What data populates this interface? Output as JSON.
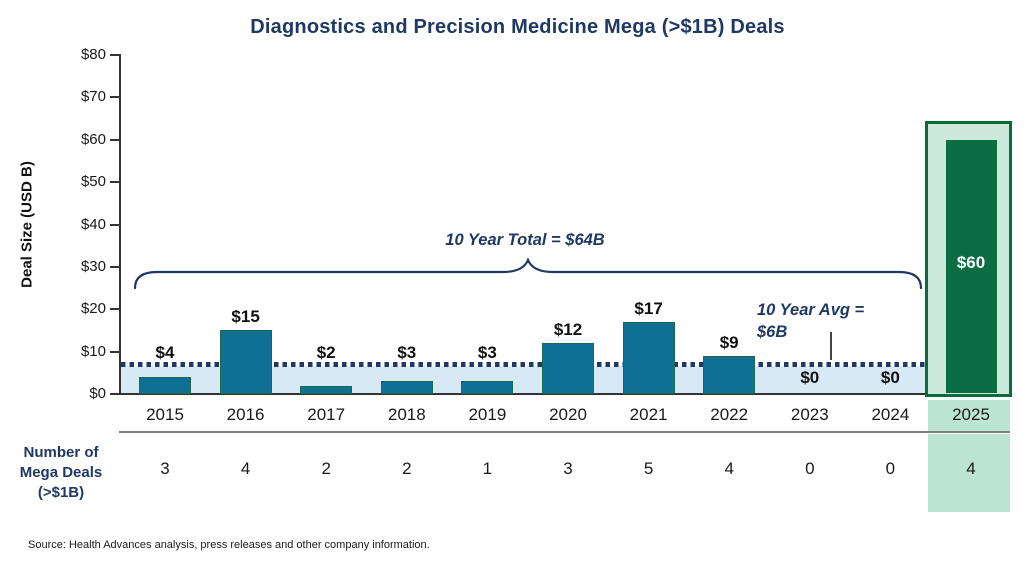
{
  "title": "Diagnostics and Precision Medicine Mega (>$1B) Deals",
  "y_axis": {
    "label": "Deal Size (USD B)",
    "tick_prefix": "$",
    "min": 0,
    "max": 80,
    "step": 10,
    "tick_labels": [
      "$0",
      "$10",
      "$20",
      "$30",
      "$40",
      "$50",
      "$60",
      "$70",
      "$80"
    ]
  },
  "chart_data": {
    "type": "bar",
    "categories": [
      "2015",
      "2016",
      "2017",
      "2018",
      "2019",
      "2020",
      "2021",
      "2022",
      "2023",
      "2024",
      "2025"
    ],
    "series": [
      {
        "name": "Deal Size (USD B)",
        "values": [
          4,
          15,
          2,
          3,
          3,
          12,
          17,
          9,
          0,
          0,
          60
        ],
        "labels": [
          "$4",
          "$15",
          "$2",
          "$3",
          "$3",
          "$12",
          "$17",
          "$9",
          "$0",
          "$0",
          "$60"
        ]
      },
      {
        "name": "Number of Mega Deals (>$1B)",
        "values": [
          3,
          4,
          2,
          2,
          1,
          3,
          5,
          4,
          0,
          0,
          4
        ]
      }
    ],
    "highlight_year": "2025",
    "ylim": [
      0,
      80
    ],
    "grid": false,
    "legend": false,
    "average_line_value": 6,
    "title": "Diagnostics and Precision Medicine Mega (>$1B) Deals",
    "ylabel": "Deal Size (USD B)",
    "xlabel": ""
  },
  "annotations": {
    "total_label": "10 Year Total = $64B",
    "avg_label": "10 Year Avg =\n$6B"
  },
  "table": {
    "row_label": "Number of\nMega Deals\n(>$1B)"
  },
  "source": "Source:   Health Advances analysis, press releases and other company information.",
  "colors": {
    "title_navy": "#1f3864",
    "bar_teal": "#0e7095",
    "bar_border_green": "#1d6a4a",
    "band_blue": "#d6e9f4",
    "dotted_navy": "#1f3864",
    "highlight_green": "#0a6e42",
    "highlight_border": "#0c6b3a",
    "highlight_mint": "#cde9dc",
    "cell_mint": "#bce4d4",
    "axis_gray": "#333333",
    "separator_gray": "#7f7f7f"
  }
}
